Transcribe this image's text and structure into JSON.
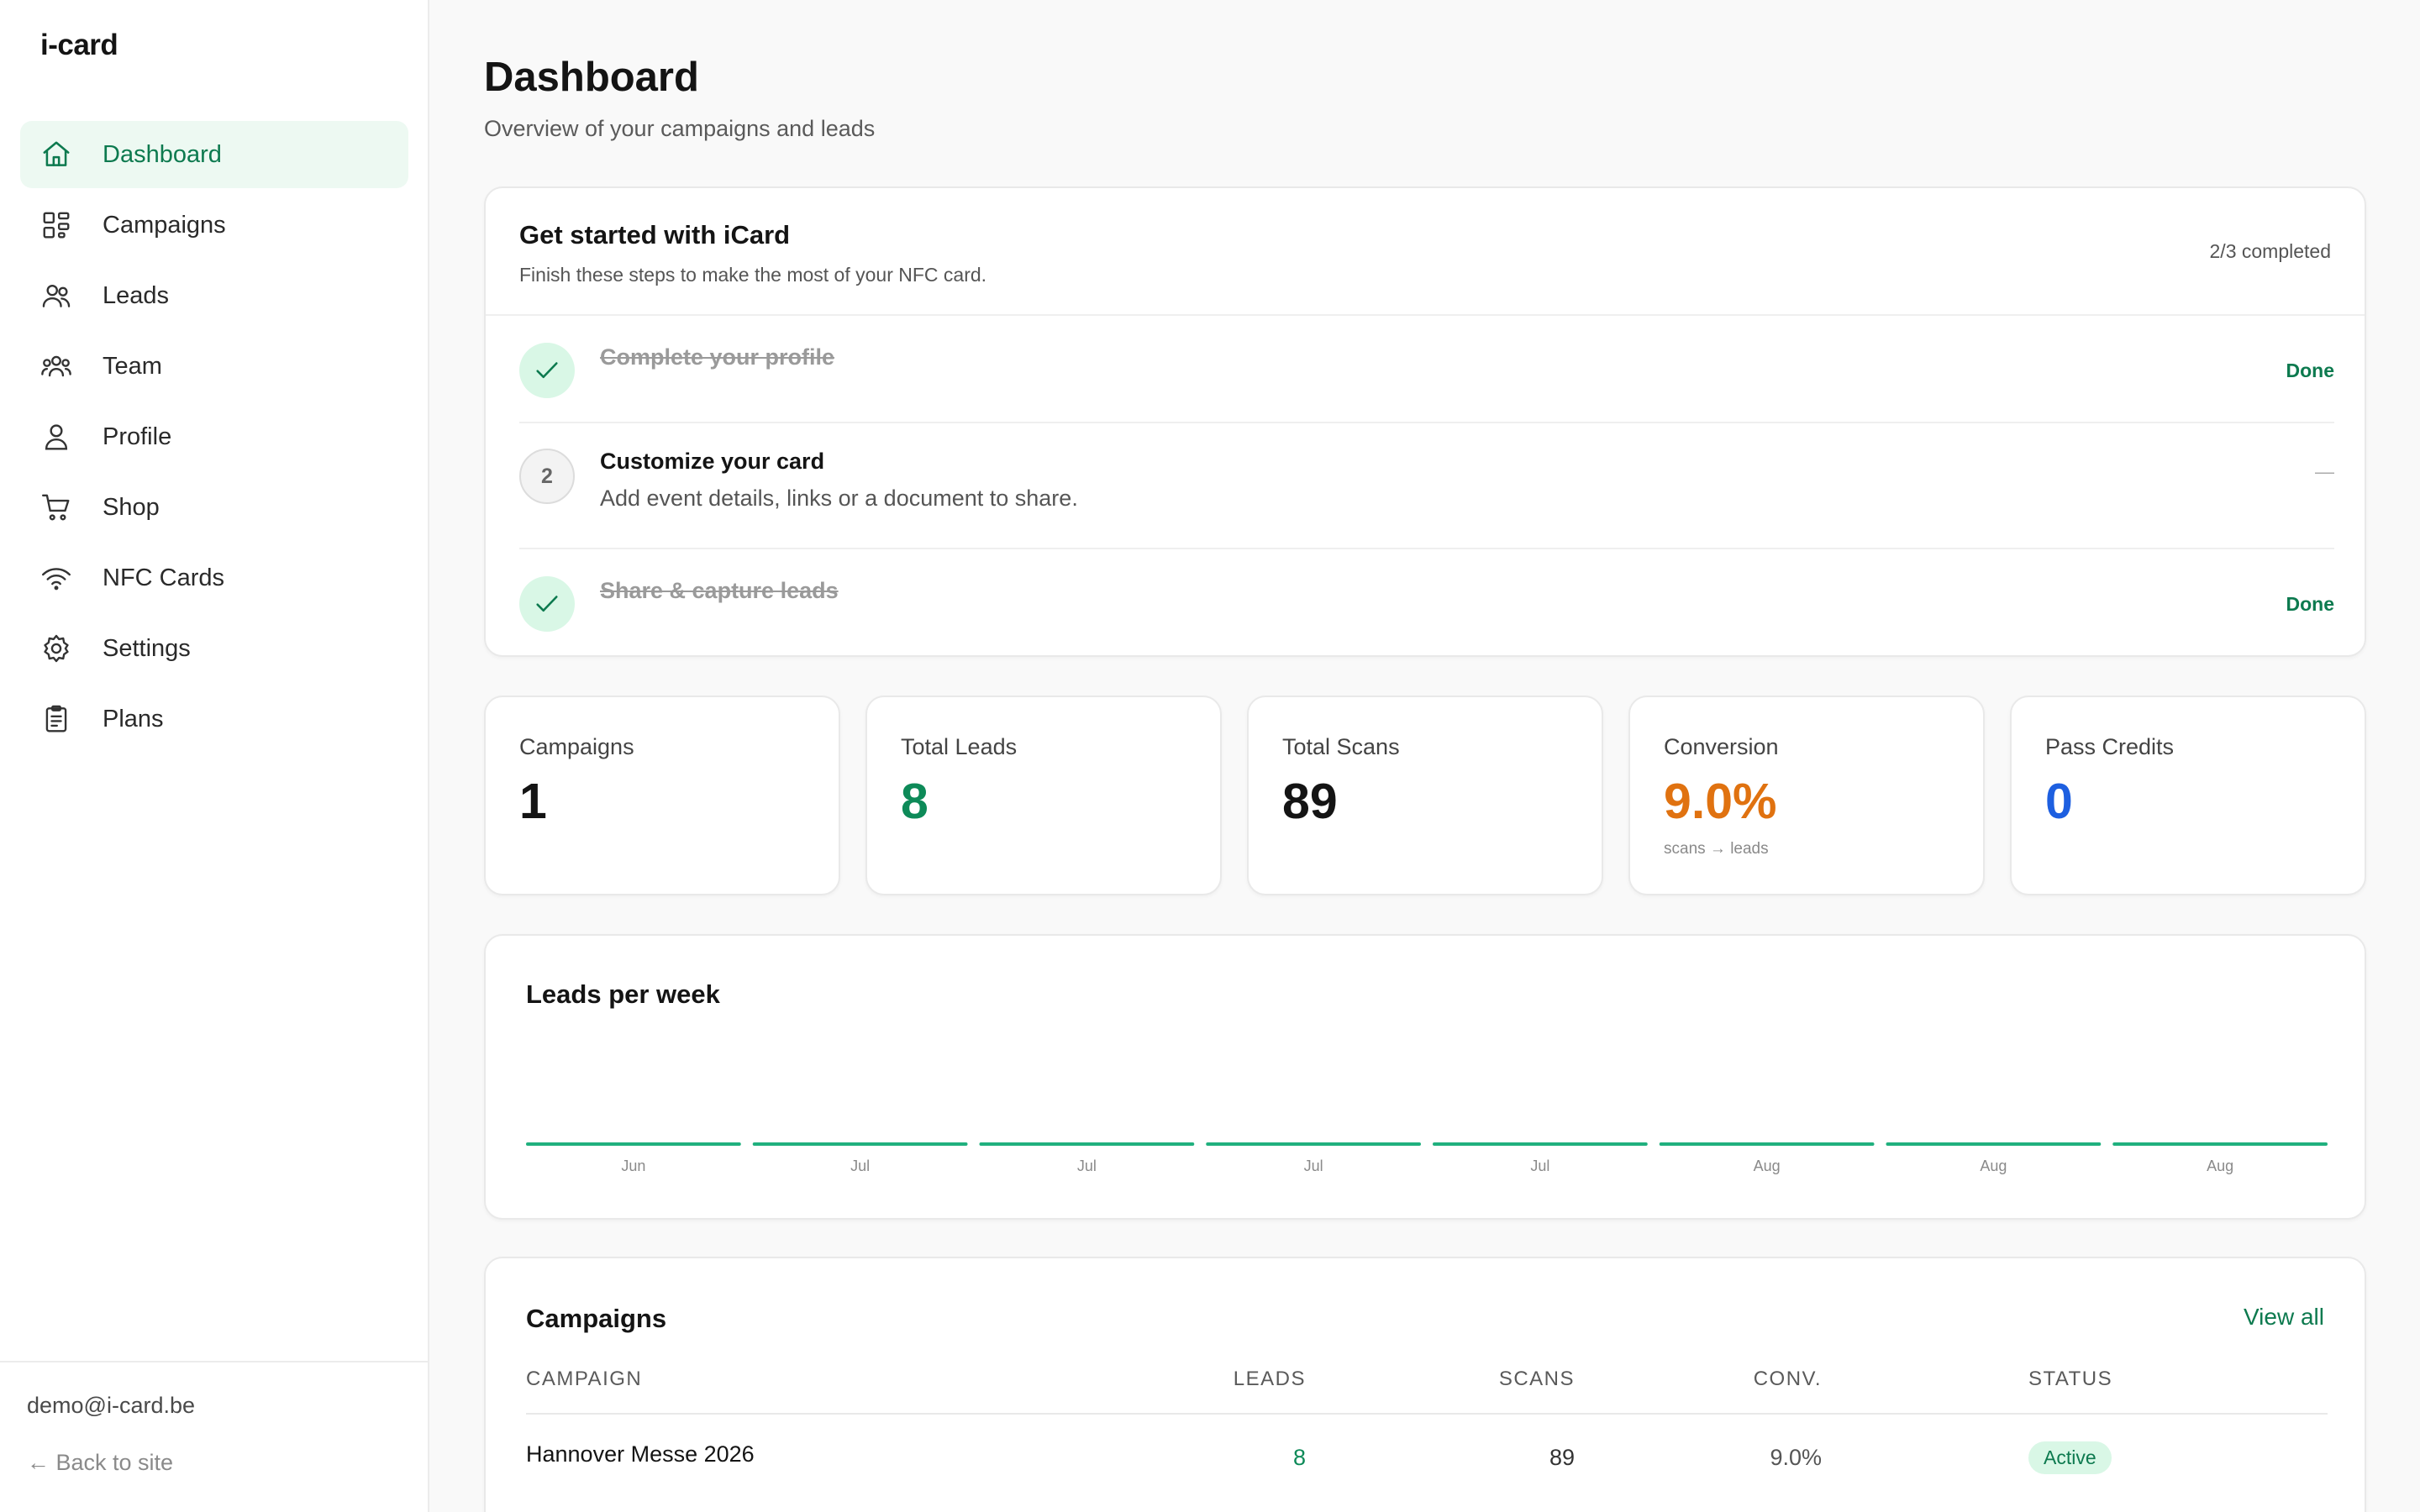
{
  "app": {
    "logo": "i-card"
  },
  "sidebar": {
    "items": [
      {
        "label": "Dashboard",
        "icon": "home-icon",
        "active": true
      },
      {
        "label": "Campaigns",
        "icon": "grid-icon",
        "active": false
      },
      {
        "label": "Leads",
        "icon": "users-icon",
        "active": false
      },
      {
        "label": "Team",
        "icon": "team-icon",
        "active": false
      },
      {
        "label": "Profile",
        "icon": "person-icon",
        "active": false
      },
      {
        "label": "Shop",
        "icon": "cart-icon",
        "active": false
      },
      {
        "label": "NFC Cards",
        "icon": "wifi-icon",
        "active": false
      },
      {
        "label": "Settings",
        "icon": "gear-icon",
        "active": false
      },
      {
        "label": "Plans",
        "icon": "clipboard-icon",
        "active": false
      }
    ],
    "user_email": "demo@i-card.be",
    "back_link": "← Back to site"
  },
  "header": {
    "title": "Dashboard",
    "subtitle": "Overview of your campaigns and leads"
  },
  "getting_started": {
    "title": "Get started with iCard",
    "description": "Finish these steps to make the most of your NFC card.",
    "progress": "2/3 completed",
    "steps": [
      {
        "number": "",
        "title": "Complete your profile",
        "description": "",
        "status": "Done",
        "completed": true
      },
      {
        "number": "2",
        "title": "Customize your card",
        "description": "Add event details, links or a document to share.",
        "status": "—",
        "completed": false
      },
      {
        "number": "",
        "title": "Share & capture leads",
        "description": "",
        "status": "Done",
        "completed": true
      }
    ]
  },
  "stats": [
    {
      "label": "Campaigns",
      "value": "1",
      "sub": "",
      "color": "#141414"
    },
    {
      "label": "Total Leads",
      "value": "8",
      "sub": "",
      "color": "#0d8a58"
    },
    {
      "label": "Total Scans",
      "value": "89",
      "sub": "",
      "color": "#141414"
    },
    {
      "label": "Conversion",
      "value": "9.0%",
      "sub": "scans → leads",
      "color": "#e07210"
    },
    {
      "label": "Pass Credits",
      "value": "0",
      "sub": "",
      "color": "#1d5fe0"
    }
  ],
  "chart_data": {
    "type": "bar",
    "title": "Leads per week",
    "categories": [
      "Jun",
      "Jul",
      "Jul",
      "Jul",
      "Jul",
      "Aug",
      "Aug",
      "Aug"
    ],
    "values": [
      0,
      0,
      0,
      0,
      0,
      0,
      0,
      0
    ],
    "color": "#20b07e"
  },
  "campaigns": {
    "title": "Campaigns",
    "view_all": "View all",
    "columns": [
      "CAMPAIGN",
      "LEADS",
      "SCANS",
      "CONV.",
      "STATUS"
    ],
    "rows": [
      {
        "name": "Hannover Messe 2026",
        "leads": "8",
        "scans": "89",
        "conv": "9.0%",
        "status": "Active"
      }
    ]
  },
  "colors": {
    "accent": "#0d7a4f",
    "accent_bg": "#edf9f2"
  }
}
